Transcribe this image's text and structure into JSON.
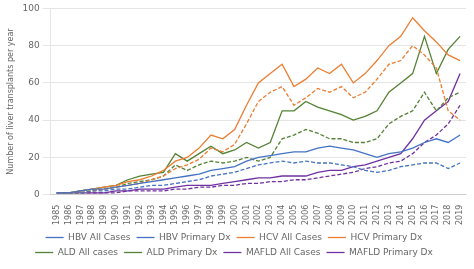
{
  "chart_data": {
    "type": "line",
    "y_label": "Number of liver transplants per year",
    "x": [
      1985,
      1986,
      1987,
      1988,
      1989,
      1990,
      1991,
      1992,
      1993,
      1994,
      1995,
      1996,
      1997,
      1998,
      1999,
      2000,
      2001,
      2002,
      2003,
      2004,
      2005,
      2006,
      2007,
      2008,
      2009,
      2010,
      2011,
      2012,
      2013,
      2014,
      2015,
      2016,
      2017,
      2018,
      2019
    ],
    "xlim": [
      1984.5,
      2019.5
    ],
    "xticks": [
      1985,
      1986,
      1987,
      1988,
      1989,
      1990,
      1991,
      1992,
      1993,
      1994,
      1995,
      1996,
      1997,
      1998,
      1999,
      2000,
      2001,
      2002,
      2003,
      2004,
      2005,
      2006,
      2007,
      2008,
      2009,
      2010,
      2011,
      2012,
      2013,
      2014,
      2015,
      2016,
      2017,
      2018,
      2019
    ],
    "ylim": [
      0,
      100
    ],
    "yticks": [
      0,
      20,
      40,
      60,
      80,
      100
    ],
    "grid": "y",
    "legend": "bottom",
    "series": [
      {
        "name": "HBV All Cases",
        "color": "#4472C4",
        "line_style": "solid",
        "values": [
          1,
          1,
          2,
          3,
          3,
          4,
          5,
          6,
          7,
          8,
          9,
          10,
          11,
          13,
          14,
          15,
          18,
          20,
          21,
          22,
          23,
          23,
          25,
          26,
          25,
          24,
          22,
          20,
          22,
          23,
          25,
          28,
          30,
          28,
          32
        ]
      },
      {
        "name": "HBV Primary Dx",
        "color": "#4472C4",
        "line_style": "dashed",
        "values": [
          1,
          1,
          1,
          2,
          2,
          3,
          3,
          4,
          5,
          5,
          6,
          7,
          8,
          10,
          11,
          12,
          14,
          16,
          17,
          18,
          17,
          18,
          17,
          17,
          16,
          15,
          13,
          12,
          13,
          15,
          16,
          17,
          17,
          14,
          17
        ]
      },
      {
        "name": "HCV All Cases",
        "color": "#ED7D31",
        "line_style": "solid",
        "values": [
          1,
          1,
          2,
          3,
          4,
          5,
          7,
          8,
          10,
          13,
          18,
          20,
          25,
          32,
          30,
          35,
          48,
          60,
          65,
          70,
          58,
          62,
          68,
          65,
          70,
          60,
          65,
          72,
          80,
          85,
          95,
          88,
          82,
          75,
          72
        ]
      },
      {
        "name": "HCV Primary Dx",
        "color": "#ED7D31",
        "line_style": "dashed",
        "values": [
          1,
          1,
          1,
          2,
          3,
          4,
          5,
          6,
          8,
          10,
          14,
          16,
          19,
          25,
          23,
          27,
          38,
          50,
          55,
          58,
          48,
          52,
          57,
          55,
          58,
          52,
          55,
          62,
          70,
          72,
          80,
          75,
          68,
          45,
          40
        ]
      },
      {
        "name": "ALD All cases",
        "color": "#548235",
        "line_style": "solid",
        "values": [
          1,
          1,
          2,
          3,
          4,
          5,
          8,
          10,
          11,
          12,
          22,
          18,
          22,
          26,
          22,
          24,
          28,
          25,
          28,
          45,
          45,
          50,
          47,
          45,
          43,
          40,
          42,
          45,
          55,
          60,
          65,
          85,
          65,
          78,
          85
        ]
      },
      {
        "name": "ALD Primary Dx",
        "color": "#548235",
        "line_style": "dashed",
        "values": [
          1,
          1,
          1,
          2,
          3,
          4,
          6,
          7,
          8,
          10,
          16,
          13,
          16,
          18,
          17,
          18,
          20,
          18,
          20,
          30,
          32,
          35,
          33,
          30,
          30,
          28,
          28,
          30,
          38,
          42,
          45,
          55,
          45,
          52,
          55
        ]
      },
      {
        "name": "MAFLD All Cases",
        "color": "#7030A0",
        "line_style": "solid",
        "values": [
          1,
          1,
          1,
          1,
          1,
          2,
          2,
          3,
          3,
          3,
          4,
          5,
          5,
          5,
          6,
          7,
          8,
          9,
          9,
          10,
          10,
          10,
          12,
          13,
          13,
          15,
          16,
          18,
          20,
          22,
          30,
          40,
          45,
          50,
          65
        ]
      },
      {
        "name": "MAFLD Primary Dx",
        "color": "#7030A0",
        "line_style": "dashed",
        "values": [
          1,
          1,
          1,
          1,
          1,
          1,
          2,
          2,
          2,
          2,
          3,
          3,
          4,
          4,
          5,
          5,
          6,
          6,
          7,
          7,
          8,
          8,
          9,
          10,
          11,
          12,
          14,
          15,
          17,
          18,
          22,
          28,
          32,
          38,
          48
        ]
      }
    ]
  }
}
